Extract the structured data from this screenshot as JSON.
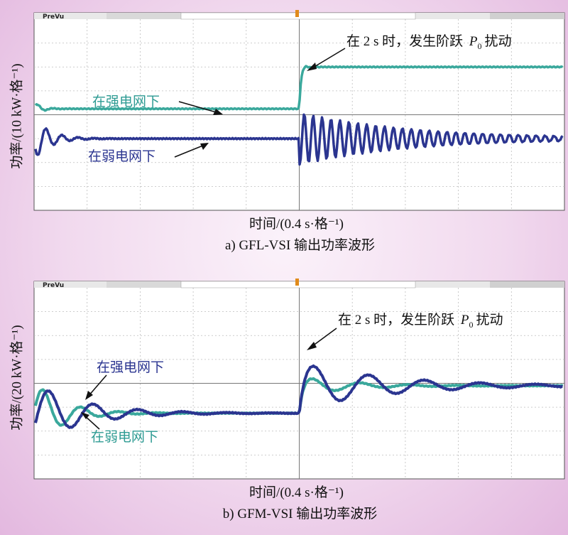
{
  "colors": {
    "strong": "#3aa89c",
    "weak": "#2b3590",
    "anno_strong": "#2e9b93",
    "anno_weak": "#2b3590",
    "grid": "#bdbdbd"
  },
  "chart_data": [
    {
      "type": "line",
      "panel": "a",
      "scope_label": "PreVu",
      "xlabel": "时间/(0.4 s·格⁻¹)",
      "ylabel": "功率/(10 kW·格⁻¹)",
      "caption": "a) GFL-VSI 输出功率波形",
      "x_divisions": 10,
      "y_divisions": 8,
      "step_time_s": 2.0,
      "series": [
        {
          "name": "在强电网下",
          "pre_level_div": 4.25,
          "post_level_div": 6.0,
          "oscillation": "small overshoot, quickly damped"
        },
        {
          "name": "在弱电网下",
          "pre_level_div": 3.0,
          "post_level_div": 3.0,
          "oscillation": "sustained oscillation ~1 div amplitude, slowly damped"
        }
      ],
      "annotations": [
        "在 2 s 时，发生阶跃 P₀ 扰动",
        "在强电网下",
        "在弱电网下"
      ]
    },
    {
      "type": "line",
      "panel": "b",
      "scope_label": "PreVu",
      "xlabel": "时间/(0.4 s·格⁻¹)",
      "ylabel": "功率/(20 kW·格⁻¹)",
      "caption": "b) GFM-VSI 输出功率波形",
      "x_divisions": 10,
      "y_divisions": 8,
      "step_time_s": 2.0,
      "series": [
        {
          "name": "在强电网下",
          "pre_level_div": 2.75,
          "post_level_div": 3.9,
          "oscillation": "damped"
        },
        {
          "name": "在弱电网下",
          "pre_level_div": 2.75,
          "post_level_div": 3.9,
          "oscillation": "larger overshoot, slower damping"
        }
      ],
      "annotations": [
        "在 2 s 时，发生阶跃 P₀ 扰动",
        "在强电网下",
        "在弱电网下"
      ]
    }
  ],
  "text": {
    "a_anno_step": "在 2 s 时，发生阶跃",
    "a_anno_p": "P",
    "a_anno_sub": "0",
    "a_anno_end": "扰动",
    "a_strong": "在强电网下",
    "a_weak": "在弱电网下",
    "b_anno_step": "在 2 s 时，发生阶跃",
    "b_anno_p": "P",
    "b_anno_sub": "0",
    "b_anno_end": "扰动",
    "b_strong": "在强电网下",
    "b_weak": "在弱电网下"
  }
}
